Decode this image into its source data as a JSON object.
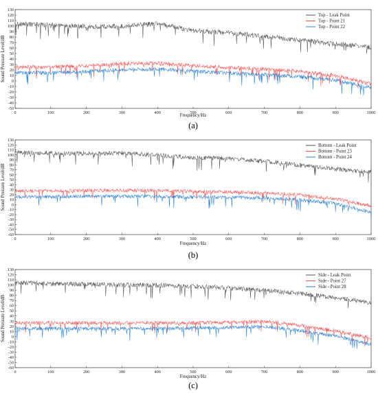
{
  "chart_data": [
    {
      "panel_label": "(a)",
      "type": "line",
      "xlabel": "Frequency/Hz",
      "ylabel": "Sound Pressure Level/dB",
      "xlim": [
        0,
        1000
      ],
      "ylim": [
        -50,
        130
      ],
      "xticks": [
        "0",
        "100",
        "200",
        "300",
        "400",
        "500",
        "600",
        "700",
        "800",
        "900",
        "1000"
      ],
      "yticks": [
        "130",
        "120",
        "110",
        "100",
        "90",
        "80",
        "70",
        "60",
        "50",
        "40",
        "30",
        "20",
        "10",
        "0",
        "-10",
        "-20",
        "-30",
        "-40",
        "-50"
      ],
      "legend": "top-right",
      "series": [
        {
          "name": "Top - Leak Point",
          "color": "#555555",
          "x": [
            0,
            100,
            200,
            300,
            400,
            500,
            600,
            700,
            800,
            900,
            1000
          ],
          "values": [
            105,
            102,
            100,
            100,
            105,
            92,
            88,
            82,
            75,
            68,
            62
          ]
        },
        {
          "name": "Top - Point 21",
          "color": "#ff4d4d",
          "x": [
            0,
            100,
            200,
            300,
            400,
            500,
            600,
            700,
            800,
            900,
            1000
          ],
          "values": [
            26,
            26,
            28,
            32,
            33,
            28,
            25,
            22,
            18,
            10,
            -5
          ]
        },
        {
          "name": "Top - Point 22",
          "color": "#1f7fe0",
          "x": [
            0,
            100,
            200,
            300,
            400,
            500,
            600,
            700,
            800,
            900,
            1000
          ],
          "values": [
            15,
            15,
            18,
            21,
            22,
            18,
            15,
            12,
            8,
            2,
            -12
          ]
        }
      ]
    },
    {
      "panel_label": "(b)",
      "type": "line",
      "xlabel": "Frequency/Hz",
      "ylabel": "Sound Pressure Level/dB",
      "xlim": [
        0,
        1000
      ],
      "ylim": [
        -60,
        130
      ],
      "xticks": [
        "0",
        "100",
        "200",
        "300",
        "400",
        "500",
        "600",
        "700",
        "800",
        "900",
        "1000"
      ],
      "yticks": [
        "130",
        "120",
        "110",
        "100",
        "90",
        "80",
        "70",
        "60",
        "50",
        "40",
        "30",
        "20",
        "10",
        "0",
        "-10",
        "-20",
        "-30",
        "-40",
        "-50",
        "-60"
      ],
      "legend": "top-right",
      "series": [
        {
          "name": "Bottom - Leak Point",
          "color": "#555555",
          "x": [
            0,
            100,
            200,
            300,
            400,
            500,
            600,
            700,
            800,
            900,
            1000
          ],
          "values": [
            105,
            104,
            103,
            104,
            100,
            95,
            93,
            88,
            80,
            72,
            66
          ]
        },
        {
          "name": "Bottom - Point 23",
          "color": "#ff4d4d",
          "x": [
            0,
            100,
            200,
            300,
            400,
            500,
            600,
            700,
            800,
            900,
            1000
          ],
          "values": [
            28,
            28,
            29,
            29,
            29,
            27,
            26,
            24,
            20,
            12,
            -2
          ]
        },
        {
          "name": "Bottom - Point 24",
          "color": "#1f7fe0",
          "x": [
            0,
            100,
            200,
            300,
            400,
            500,
            600,
            700,
            800,
            900,
            1000
          ],
          "values": [
            16,
            16,
            17,
            17,
            17,
            16,
            15,
            14,
            10,
            3,
            -15
          ]
        }
      ]
    },
    {
      "panel_label": "(c)",
      "type": "line",
      "xlabel": "Frequency/Hz",
      "ylabel": "Sound Pressure Level/dB",
      "xlim": [
        0,
        1000
      ],
      "ylim": [
        -60,
        130
      ],
      "xticks": [
        "0",
        "100",
        "200",
        "300",
        "400",
        "500",
        "600",
        "700",
        "800",
        "900",
        "1000"
      ],
      "yticks": [
        "130",
        "120",
        "110",
        "100",
        "90",
        "80",
        "70",
        "60",
        "50",
        "40",
        "30",
        "20",
        "10",
        "0",
        "-10",
        "-20",
        "-30",
        "-40",
        "-50",
        "-60"
      ],
      "legend": "top-right",
      "series": [
        {
          "name": "Side - Leak Point",
          "color": "#555555",
          "x": [
            0,
            100,
            200,
            300,
            400,
            500,
            600,
            700,
            800,
            900,
            1000
          ],
          "values": [
            105,
            103,
            102,
            101,
            100,
            98,
            95,
            90,
            84,
            76,
            66
          ]
        },
        {
          "name": "Side - Point 27",
          "color": "#ff4d4d",
          "x": [
            0,
            100,
            200,
            300,
            400,
            500,
            600,
            700,
            800,
            900,
            1000
          ],
          "values": [
            27,
            27,
            27,
            27,
            27,
            27,
            28,
            30,
            22,
            12,
            -3
          ]
        },
        {
          "name": "Side - Point 28",
          "color": "#1f7fe0",
          "x": [
            0,
            100,
            200,
            300,
            400,
            500,
            600,
            700,
            800,
            900,
            1000
          ],
          "values": [
            16,
            16,
            16,
            16,
            16,
            17,
            18,
            20,
            12,
            2,
            -15
          ]
        }
      ]
    }
  ]
}
